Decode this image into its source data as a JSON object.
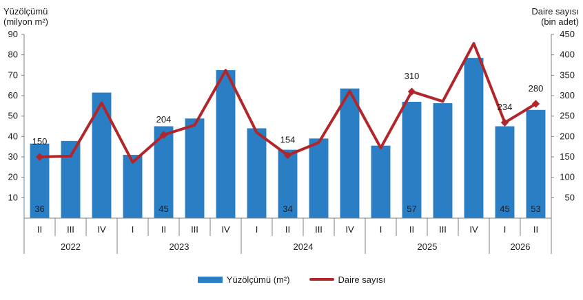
{
  "chart_data": {
    "type": "bar+line",
    "y_left_title": [
      "Yüzölçümü",
      "(milyon m²)"
    ],
    "y_right_title": [
      "Daire sayısı",
      "(bin adet)"
    ],
    "y_left_range": [
      0,
      90
    ],
    "y_left_ticks": [
      "10",
      "20",
      "30",
      "40",
      "50",
      "60",
      "70",
      "80",
      "90"
    ],
    "y_right_range": [
      0,
      450
    ],
    "y_right_ticks": [
      "50",
      "100",
      "150",
      "200",
      "250",
      "300",
      "350",
      "400",
      "450"
    ],
    "quarters": [
      "II",
      "III",
      "IV",
      "I",
      "II",
      "III",
      "IV",
      "I",
      "II",
      "III",
      "IV",
      "I",
      "II",
      "III",
      "IV",
      "I",
      "II"
    ],
    "years": [
      {
        "label": "2022",
        "count": 3
      },
      {
        "label": "2023",
        "count": 4
      },
      {
        "label": "2024",
        "count": 4
      },
      {
        "label": "2025",
        "count": 4
      },
      {
        "label": "2026",
        "count": 2
      }
    ],
    "series": [
      {
        "name": "Yüzölçümü (m²)",
        "type": "bar",
        "axis": "left",
        "color": "#2a7fc4",
        "values": [
          36.5,
          37.8,
          61.5,
          31.0,
          45.0,
          48.8,
          72.5,
          44.0,
          33.5,
          39.0,
          63.5,
          35.5,
          57.0,
          56.3,
          78.5,
          45.0,
          53.0
        ],
        "labels": [
          "36",
          "",
          "",
          "",
          "45",
          "",
          "",
          "",
          "34",
          "",
          "",
          "",
          "57",
          "",
          "",
          "45",
          "53"
        ]
      },
      {
        "name": "Daire sayısı",
        "type": "line",
        "axis": "right",
        "color": "#b0262a",
        "values": [
          150,
          152,
          282,
          137,
          204,
          228,
          362,
          210,
          154,
          185,
          311,
          172,
          310,
          286,
          428,
          234,
          280
        ],
        "labels": [
          "150",
          "",
          "",
          "",
          "204",
          "",
          "",
          "",
          "154",
          "",
          "",
          "",
          "310",
          "",
          "",
          "234",
          "280"
        ]
      }
    ],
    "grid": false,
    "legend_position": "bottom"
  }
}
